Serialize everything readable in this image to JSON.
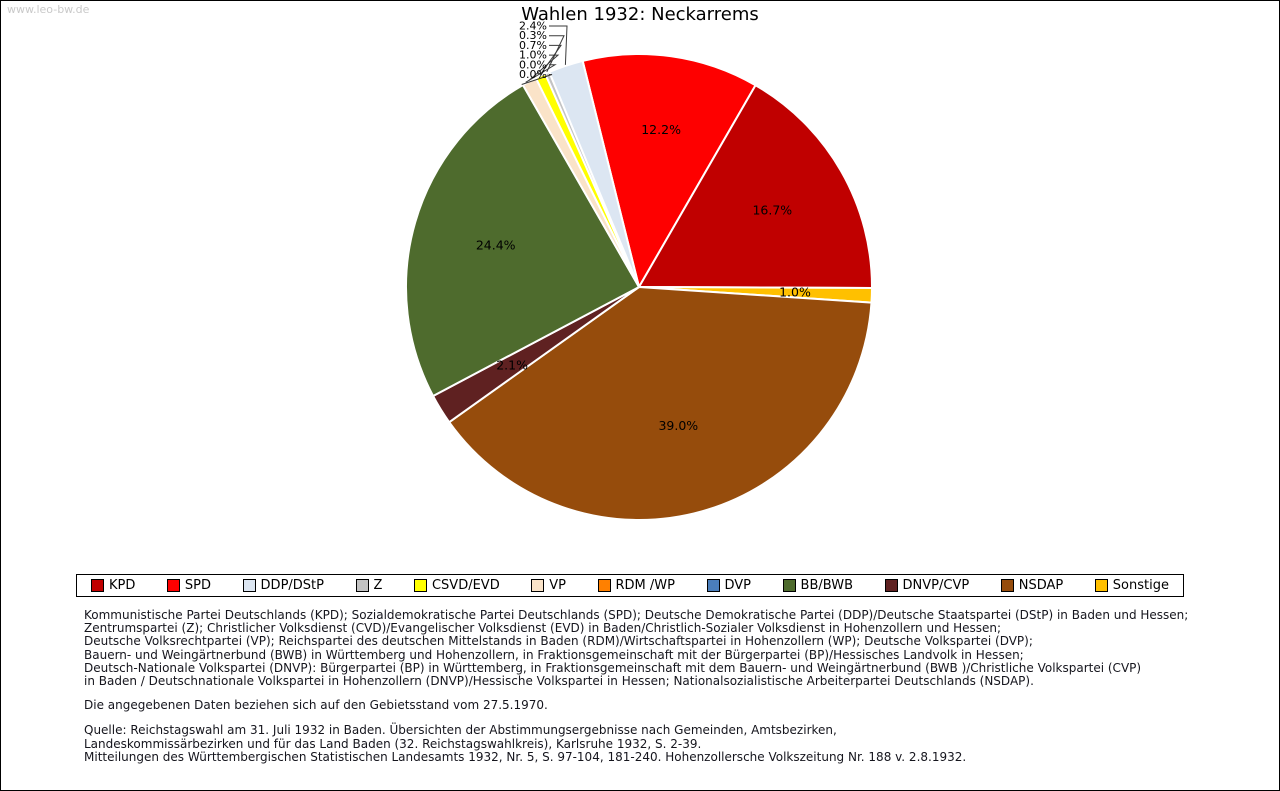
{
  "watermark": "www.leo-bw.de",
  "title": "Wahlen 1932: Neckarrems",
  "chart_data": {
    "type": "pie",
    "title": "Wahlen 1932: Neckarrems",
    "value_unit": "percent",
    "start_angle_deg": -14,
    "legend_position": "bottom",
    "colors": {
      "KPD": "#c00000",
      "SPD": "#fe0000",
      "DDP/DStP": "#dce6f2",
      "Z": "#c3c3c3",
      "CSVD/EVD": "#ffff00",
      "VP": "#fae3c8",
      "RDM /WP": "#ff8000",
      "DVP": "#4a7ebb",
      "BB/BWB": "#4e6b2d",
      "DNVP/CVP": "#5f2121",
      "NSDAP": "#964c0c",
      "Sonstige": "#ffc000"
    },
    "legend_order": [
      "KPD",
      "SPD",
      "DDP/DStP",
      "Z",
      "CSVD/EVD",
      "VP",
      "RDM /WP",
      "DVP",
      "BB/BWB",
      "DNVP/CVP",
      "NSDAP",
      "Sonstige"
    ],
    "slices_clockwise": [
      {
        "party": "SPD",
        "value": 12.2,
        "label": "12.2%",
        "label_mode": "inside",
        "label_r": 0.68
      },
      {
        "party": "KPD",
        "value": 16.7,
        "label": "16.7%",
        "label_mode": "inside",
        "label_r": 0.66
      },
      {
        "party": "Sonstige",
        "value": 1.0,
        "label": "1.0%",
        "label_mode": "inside",
        "label_r": 0.67
      },
      {
        "party": "NSDAP",
        "value": 39.0,
        "label": "39.0%",
        "label_mode": "inside",
        "label_r": 0.62
      },
      {
        "party": "DNVP/CVP",
        "value": 2.1,
        "label": "2.1%",
        "label_mode": "inside",
        "label_r": 0.64
      },
      {
        "party": "BB/BWB",
        "value": 24.4,
        "label": "24.4%",
        "label_mode": "inside",
        "label_r": 0.64
      },
      {
        "party": "DVP",
        "value": 0.0,
        "label": "0.0%",
        "label_mode": "callout"
      },
      {
        "party": "RDM /WP",
        "value": 0.0,
        "label": "0.0%",
        "label_mode": "callout"
      },
      {
        "party": "VP",
        "value": 1.0,
        "label": "1.0%",
        "label_mode": "callout"
      },
      {
        "party": "CSVD/EVD",
        "value": 0.7,
        "label": "0.7%",
        "label_mode": "callout"
      },
      {
        "party": "Z",
        "value": 0.3,
        "label": "0.3%",
        "label_mode": "callout"
      },
      {
        "party": "DDP/DStP",
        "value": 2.4,
        "label": "2.4%",
        "label_mode": "callout"
      }
    ],
    "callout_stack_top_to_bottom": [
      "DDP/DStP",
      "Z",
      "CSVD/EVD",
      "VP",
      "RDM /WP",
      "DVP"
    ]
  },
  "notes": {
    "explain": [
      "Kommunistische Partei Deutschlands (KPD); Sozialdemokratische Partei Deutschlands (SPD); Deutsche Demokratische Partei (DDP)/Deutsche Staatspartei (DStP) in Baden und Hessen;",
      "Zentrumspartei (Z); Christlicher Volksdienst (CVD)/Evangelischer Volksdienst (EVD) in Baden/Christlich-Sozialer Volksdienst in Hohenzollern und Hessen;",
      "Deutsche Volksrechtpartei (VP); Reichspartei des deutschen Mittelstands in Baden (RDM)/Wirtschaftspartei in Hohenzollern (WP); Deutsche Volkspartei (DVP);",
      "Bauern- und Weingärtnerbund (BWB) in Württemberg und Hohenzollern, in Fraktionsgemeinschaft mit der Bürgerpartei (BP)/Hessisches Landvolk in Hessen;",
      "Deutsch-Nationale Volkspartei (DNVP): Bürgerpartei (BP) in Württemberg, in Fraktionsgemeinschaft mit dem Bauern- und Weingärtnerbund (BWB )/Christliche Volkspartei (CVP)",
      "in Baden / Deutschnationale Volkspartei in Hohenzollern (DNVP)/Hessische Volkspartei in Hessen; Nationalsozialistische Arbeiterpartei Deutschlands (NSDAP)."
    ],
    "territorial": "Die angegebenen Daten beziehen sich auf den Gebietsstand vom 27.5.1970.",
    "source": [
      "Quelle: Reichstagswahl am 31. Juli 1932 in Baden. Übersichten der Abstimmungsergebnisse nach Gemeinden, Amtsbezirken,",
      "Landeskommissärbezirken und für das Land Baden (32. Reichstagswahlkreis), Karlsruhe 1932, S. 2-39.",
      "Mitteilungen des Württembergischen Statistischen Landesamts 1932, Nr. 5, S. 97-104, 181-240. Hohenzollersche Volkszeitung Nr. 188 v. 2.8.1932."
    ]
  }
}
